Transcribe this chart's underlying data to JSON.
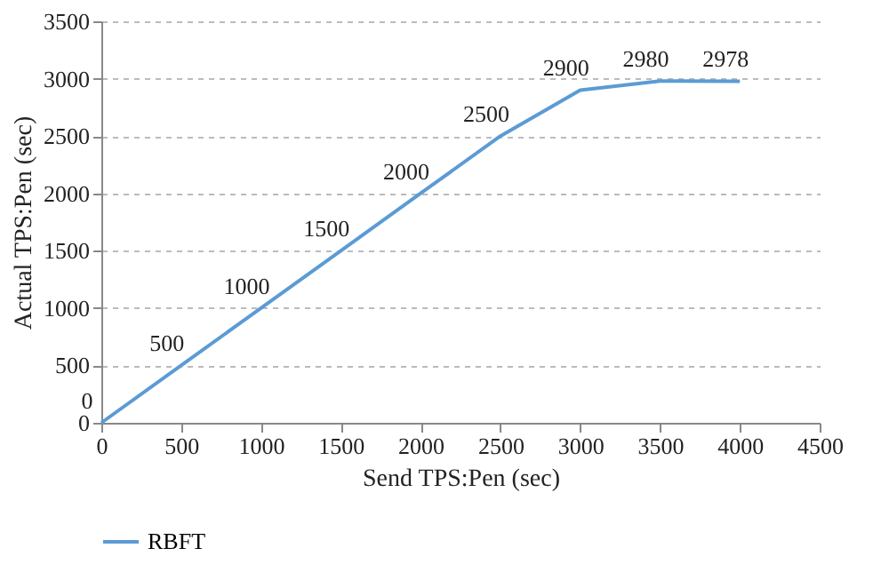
{
  "chart_data": {
    "type": "line",
    "xlabel": "Send TPS:Pen (sec)",
    "ylabel": "Actual TPS:Pen (sec)",
    "x": [
      0,
      500,
      1000,
      1500,
      2000,
      2500,
      3000,
      3500,
      4000
    ],
    "series": [
      {
        "name": "RBFT",
        "color": "#5b9bd5",
        "values": [
          0,
          500,
          1000,
          1500,
          2000,
          2500,
          2900,
          2980,
          2978
        ]
      }
    ],
    "xlim": [
      0,
      4500
    ],
    "xticks": [
      0,
      500,
      1000,
      1500,
      2000,
      2500,
      3000,
      3500,
      4000,
      4500
    ],
    "ylim": [
      0,
      3500
    ],
    "yticks": [
      0,
      500,
      1000,
      1500,
      2000,
      2500,
      3000,
      3500
    ],
    "grid": "y",
    "legend": "bottom",
    "marker": "none",
    "line_style": "solid",
    "data_labels": true
  }
}
